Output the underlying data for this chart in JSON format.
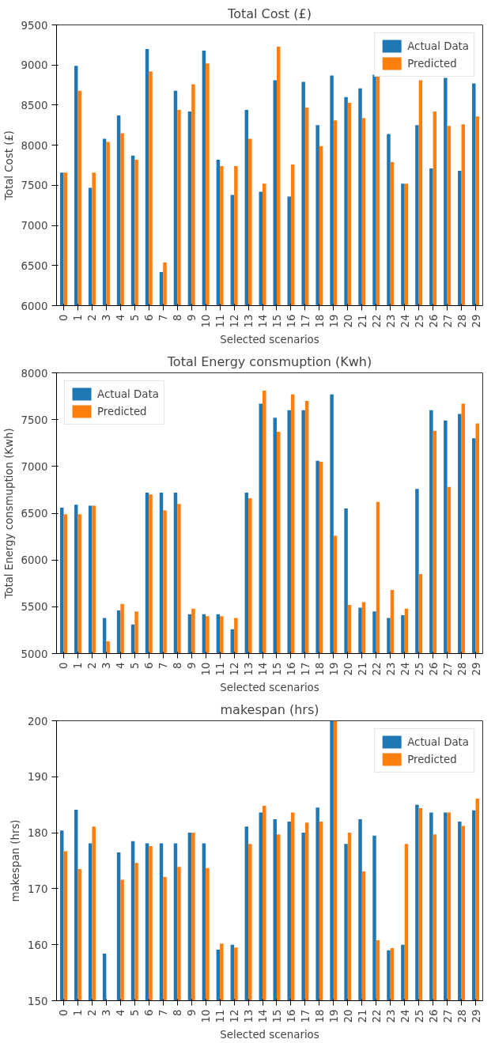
{
  "chart_data": [
    {
      "type": "bar",
      "title": "Total Cost (£)",
      "xlabel": "Selected scenarios",
      "ylabel": "Total Cost (£)",
      "categories": [
        "0",
        "1",
        "2",
        "3",
        "4",
        "5",
        "6",
        "7",
        "8",
        "9",
        "10",
        "11",
        "12",
        "13",
        "14",
        "15",
        "16",
        "17",
        "18",
        "19",
        "20",
        "21",
        "22",
        "23",
        "24",
        "25",
        "26",
        "27",
        "28",
        "29"
      ],
      "ylim": [
        6000,
        9500
      ],
      "yticks": [
        6000,
        6500,
        7000,
        7500,
        8000,
        8500,
        9000,
        9500
      ],
      "grid": false,
      "legend": "top right",
      "series": [
        {
          "name": "Actual Data",
          "color": "#1f77b4",
          "values": [
            7660,
            8990,
            7470,
            8080,
            8370,
            7870,
            9200,
            6420,
            8680,
            8420,
            9180,
            7820,
            7380,
            8440,
            7420,
            8810,
            7360,
            8790,
            8250,
            8870,
            8600,
            8710,
            8880,
            8140,
            7520,
            8250,
            7710,
            8840,
            7680,
            8770
          ]
        },
        {
          "name": "Predicted",
          "color": "#ff7f0e",
          "values": [
            7660,
            8680,
            7660,
            8040,
            8150,
            7820,
            8920,
            6540,
            8440,
            8760,
            9020,
            7740,
            7740,
            8080,
            7520,
            9230,
            7760,
            8470,
            7990,
            8310,
            8530,
            8340,
            8870,
            7790,
            7520,
            8810,
            8420,
            8240,
            8260,
            8360
          ]
        }
      ]
    },
    {
      "type": "bar",
      "title": "Total Energy consmuption (Kwh)",
      "xlabel": "Selected scenarios",
      "ylabel": "Total Energy consmuption (Kwh)",
      "categories": [
        "0",
        "1",
        "2",
        "3",
        "4",
        "5",
        "6",
        "7",
        "8",
        "9",
        "10",
        "11",
        "12",
        "13",
        "14",
        "15",
        "16",
        "17",
        "18",
        "19",
        "20",
        "21",
        "22",
        "23",
        "24",
        "25",
        "26",
        "27",
        "28",
        "29"
      ],
      "ylim": [
        5000,
        8000
      ],
      "yticks": [
        5000,
        5500,
        6000,
        6500,
        7000,
        7500,
        8000
      ],
      "grid": false,
      "legend": "top left",
      "series": [
        {
          "name": "Actual Data",
          "color": "#1f77b4",
          "values": [
            6560,
            6590,
            6580,
            5380,
            5460,
            5310,
            6720,
            6720,
            6720,
            5420,
            5420,
            5420,
            5260,
            6720,
            7670,
            7520,
            7600,
            7600,
            7060,
            7770,
            6550,
            5490,
            5450,
            5380,
            5410,
            6760,
            7600,
            7490,
            7560,
            7300
          ]
        },
        {
          "name": "Predicted",
          "color": "#ff7f0e",
          "values": [
            6490,
            6490,
            6580,
            5130,
            5530,
            5450,
            6700,
            6530,
            6600,
            5480,
            5400,
            5400,
            5380,
            6660,
            7810,
            7370,
            7770,
            7700,
            7050,
            6260,
            5520,
            5550,
            6620,
            5680,
            5480,
            5850,
            7380,
            6780,
            7670,
            7460
          ]
        }
      ]
    },
    {
      "type": "bar",
      "title": "makespan (hrs)",
      "xlabel": "Selected scenarios",
      "ylabel": "makespan (hrs)",
      "categories": [
        "0",
        "1",
        "2",
        "3",
        "4",
        "5",
        "6",
        "7",
        "8",
        "9",
        "10",
        "11",
        "12",
        "13",
        "14",
        "15",
        "16",
        "17",
        "18",
        "19",
        "20",
        "21",
        "22",
        "23",
        "24",
        "25",
        "26",
        "27",
        "28",
        "29"
      ],
      "ylim": [
        150,
        200
      ],
      "yticks": [
        150,
        160,
        170,
        180,
        190,
        200
      ],
      "grid": false,
      "legend": "top right",
      "series": [
        {
          "name": "Actual Data",
          "color": "#1f77b4",
          "values": [
            180.4,
            184.1,
            178.1,
            158.4,
            176.5,
            178.5,
            178.1,
            178.1,
            178.1,
            180,
            178.1,
            159.1,
            160,
            181.1,
            183.6,
            182.4,
            182,
            180,
            184.5,
            200,
            178,
            182.4,
            179.5,
            159,
            160,
            185,
            183.6,
            183.6,
            182,
            184
          ]
        },
        {
          "name": "Predicted",
          "color": "#ff7f0e",
          "values": [
            176.7,
            173.5,
            181.1,
            null,
            171.6,
            174.6,
            177.6,
            172.1,
            173.9,
            180,
            173.7,
            160.2,
            159.5,
            178,
            184.8,
            179.7,
            183.6,
            181.8,
            182,
            200,
            180,
            173.1,
            160.8,
            159.4,
            178,
            184.4,
            179.7,
            183.6,
            181.2,
            186.1
          ]
        }
      ]
    }
  ]
}
